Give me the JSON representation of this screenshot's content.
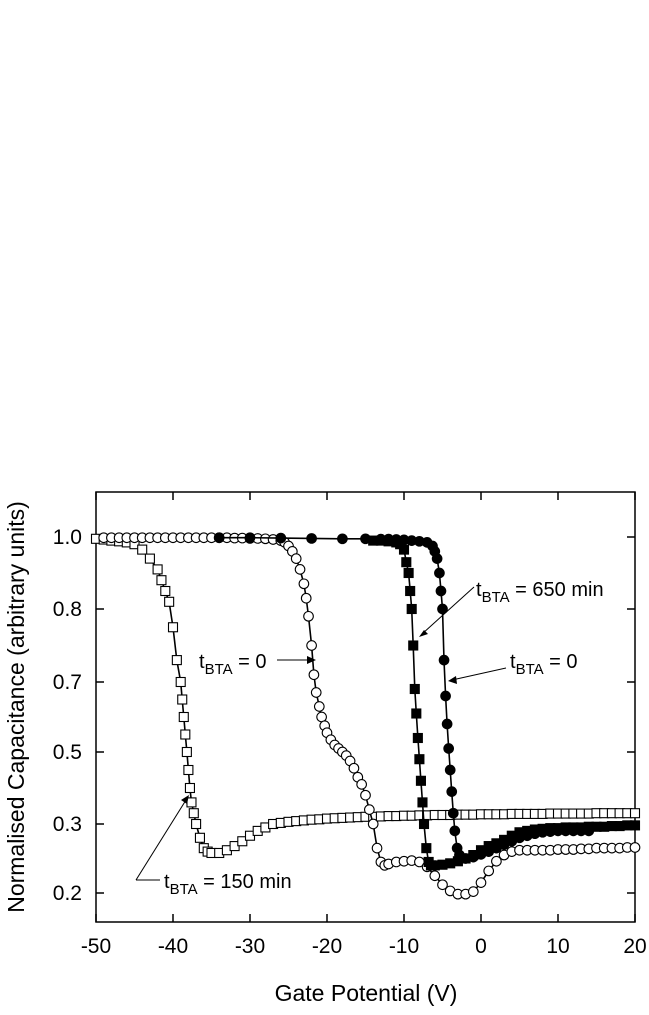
{
  "chart_data": {
    "type": "scatter",
    "title": "",
    "xlabel": "Gate Potential (V)",
    "ylabel": "Normalised Capacitance (arbitrary units)",
    "xlim": [
      -50,
      20
    ],
    "ylim": [
      0.15,
      1.1
    ],
    "x_ticks": [
      -50,
      -40,
      -30,
      -20,
      -10,
      0,
      10,
      20
    ],
    "x_tick_labels": [
      "-50",
      "-40",
      "-30",
      "-20",
      "-10",
      "0",
      "10",
      "20"
    ],
    "y_ticks": [
      1.0,
      0.8,
      0.7,
      0.5,
      0.3,
      0.2
    ],
    "y_tick_labels": [
      "1.0",
      "0.8",
      "0.7",
      "0.5",
      "0.3",
      "0.2"
    ],
    "grid": false,
    "series": [
      {
        "marker": "open-square",
        "points": [
          [
            -50,
            0.995
          ],
          [
            -49,
            0.993
          ],
          [
            -48,
            0.99
          ],
          [
            -47,
            0.988
          ],
          [
            -46,
            0.985
          ],
          [
            -45,
            0.98
          ],
          [
            -44,
            0.965
          ],
          [
            -43,
            0.94
          ],
          [
            -42,
            0.91
          ],
          [
            -41.5,
            0.88
          ],
          [
            -41,
            0.85
          ],
          [
            -40.5,
            0.82
          ],
          [
            -40,
            0.775
          ],
          [
            -39.5,
            0.73
          ],
          [
            -39,
            0.7
          ],
          [
            -38.8,
            0.65
          ],
          [
            -38.6,
            0.6
          ],
          [
            -38.4,
            0.55
          ],
          [
            -38.2,
            0.5
          ],
          [
            -38,
            0.45
          ],
          [
            -37.8,
            0.4
          ],
          [
            -37.6,
            0.36
          ],
          [
            -37.3,
            0.33
          ],
          [
            -37,
            0.3
          ],
          [
            -36.5,
            0.28
          ],
          [
            -36,
            0.265
          ],
          [
            -35.5,
            0.26
          ],
          [
            -35,
            0.258
          ],
          [
            -34,
            0.258
          ],
          [
            -33,
            0.262
          ],
          [
            -32,
            0.268
          ],
          [
            -31,
            0.275
          ],
          [
            -30,
            0.283
          ],
          [
            -29,
            0.29
          ],
          [
            -28,
            0.295
          ],
          [
            -27,
            0.3
          ],
          [
            -26,
            0.303
          ],
          [
            -25,
            0.306
          ],
          [
            -24,
            0.308
          ],
          [
            -23,
            0.31
          ],
          [
            -22,
            0.312
          ],
          [
            -21,
            0.313
          ],
          [
            -20,
            0.315
          ],
          [
            -19,
            0.316
          ],
          [
            -18,
            0.317
          ],
          [
            -17,
            0.318
          ],
          [
            -16,
            0.319
          ],
          [
            -15,
            0.32
          ],
          [
            -14,
            0.32
          ],
          [
            -13,
            0.321
          ],
          [
            -12,
            0.322
          ],
          [
            -11,
            0.322
          ],
          [
            -10,
            0.323
          ],
          [
            -9,
            0.323
          ],
          [
            -8,
            0.324
          ],
          [
            -7,
            0.324
          ],
          [
            -6,
            0.325
          ],
          [
            -5,
            0.325
          ],
          [
            -4,
            0.325
          ],
          [
            -3,
            0.326
          ],
          [
            -2,
            0.326
          ],
          [
            -1,
            0.326
          ],
          [
            0,
            0.327
          ],
          [
            1,
            0.327
          ],
          [
            2,
            0.327
          ],
          [
            3,
            0.327
          ],
          [
            4,
            0.328
          ],
          [
            5,
            0.328
          ],
          [
            6,
            0.328
          ],
          [
            7,
            0.328
          ],
          [
            8,
            0.328
          ],
          [
            9,
            0.329
          ],
          [
            10,
            0.329
          ],
          [
            11,
            0.329
          ],
          [
            12,
            0.329
          ],
          [
            13,
            0.329
          ],
          [
            14,
            0.329
          ],
          [
            15,
            0.33
          ],
          [
            16,
            0.33
          ],
          [
            17,
            0.33
          ],
          [
            18,
            0.33
          ],
          [
            19,
            0.33
          ],
          [
            20,
            0.33
          ]
        ]
      },
      {
        "marker": "open-circle",
        "points": [
          [
            -49,
            0.998
          ],
          [
            -48,
            0.998
          ],
          [
            -47,
            0.998
          ],
          [
            -46,
            0.998
          ],
          [
            -45,
            0.998
          ],
          [
            -44,
            0.998
          ],
          [
            -43,
            0.998
          ],
          [
            -42,
            0.998
          ],
          [
            -41,
            0.998
          ],
          [
            -40,
            0.998
          ],
          [
            -39,
            0.998
          ],
          [
            -38,
            0.998
          ],
          [
            -37,
            0.998
          ],
          [
            -36,
            0.998
          ],
          [
            -35,
            0.998
          ],
          [
            -34,
            0.998
          ],
          [
            -33,
            0.998
          ],
          [
            -32,
            0.997
          ],
          [
            -31,
            0.997
          ],
          [
            -30,
            0.996
          ],
          [
            -29,
            0.996
          ],
          [
            -28,
            0.995
          ],
          [
            -27,
            0.993
          ],
          [
            -26,
            0.99
          ],
          [
            -25.5,
            0.985
          ],
          [
            -25,
            0.975
          ],
          [
            -24.5,
            0.96
          ],
          [
            -24,
            0.94
          ],
          [
            -23.5,
            0.91
          ],
          [
            -23,
            0.87
          ],
          [
            -22.7,
            0.83
          ],
          [
            -22.4,
            0.79
          ],
          [
            -22,
            0.75
          ],
          [
            -21.7,
            0.71
          ],
          [
            -21.4,
            0.67
          ],
          [
            -21,
            0.63
          ],
          [
            -20.7,
            0.6
          ],
          [
            -20.3,
            0.575
          ],
          [
            -20,
            0.555
          ],
          [
            -19.5,
            0.535
          ],
          [
            -19,
            0.52
          ],
          [
            -18.5,
            0.51
          ],
          [
            -18,
            0.5
          ],
          [
            -17.5,
            0.49
          ],
          [
            -17,
            0.475
          ],
          [
            -16.5,
            0.455
          ],
          [
            -16,
            0.43
          ],
          [
            -15.5,
            0.41
          ],
          [
            -15,
            0.38
          ],
          [
            -14.5,
            0.34
          ],
          [
            -14,
            0.3
          ],
          [
            -13.5,
            0.265
          ],
          [
            -13,
            0.245
          ],
          [
            -12.5,
            0.24
          ],
          [
            -12,
            0.242
          ],
          [
            -11,
            0.245
          ],
          [
            -10,
            0.246
          ],
          [
            -9,
            0.247
          ],
          [
            -8,
            0.245
          ],
          [
            -7,
            0.238
          ],
          [
            -6,
            0.225
          ],
          [
            -5,
            0.212
          ],
          [
            -4,
            0.203
          ],
          [
            -3,
            0.198
          ],
          [
            -2,
            0.198
          ],
          [
            -1,
            0.202
          ],
          [
            0,
            0.215
          ],
          [
            1,
            0.232
          ],
          [
            2,
            0.246
          ],
          [
            3,
            0.255
          ],
          [
            4,
            0.26
          ],
          [
            5,
            0.262
          ],
          [
            6,
            0.262
          ],
          [
            7,
            0.262
          ],
          [
            8,
            0.262
          ],
          [
            9,
            0.262
          ],
          [
            10,
            0.263
          ],
          [
            11,
            0.263
          ],
          [
            12,
            0.263
          ],
          [
            13,
            0.264
          ],
          [
            14,
            0.264
          ],
          [
            15,
            0.265
          ],
          [
            16,
            0.265
          ],
          [
            17,
            0.265
          ],
          [
            18,
            0.265
          ],
          [
            19,
            0.266
          ],
          [
            20,
            0.266
          ]
        ]
      },
      {
        "marker": "filled-square",
        "points": [
          [
            -14,
            0.99
          ],
          [
            -13,
            0.99
          ],
          [
            -12,
            0.988
          ],
          [
            -11,
            0.985
          ],
          [
            -10.5,
            0.98
          ],
          [
            -10,
            0.965
          ],
          [
            -9.7,
            0.93
          ],
          [
            -9.4,
            0.9
          ],
          [
            -9.2,
            0.85
          ],
          [
            -9,
            0.8
          ],
          [
            -8.8,
            0.75
          ],
          [
            -8.6,
            0.68
          ],
          [
            -8.4,
            0.61
          ],
          [
            -8.2,
            0.54
          ],
          [
            -8,
            0.48
          ],
          [
            -7.8,
            0.42
          ],
          [
            -7.6,
            0.36
          ],
          [
            -7.4,
            0.3
          ],
          [
            -7.1,
            0.265
          ],
          [
            -6.8,
            0.245
          ],
          [
            -6.5,
            0.24
          ],
          [
            -6,
            0.24
          ],
          [
            -5,
            0.241
          ],
          [
            -4,
            0.243
          ],
          [
            -3,
            0.246
          ],
          [
            -2,
            0.25
          ],
          [
            -1,
            0.255
          ],
          [
            0,
            0.262
          ],
          [
            1,
            0.268
          ],
          [
            2,
            0.272
          ],
          [
            3,
            0.277
          ],
          [
            4,
            0.283
          ],
          [
            5,
            0.288
          ],
          [
            6,
            0.29
          ],
          [
            7,
            0.292
          ],
          [
            8,
            0.293
          ],
          [
            9,
            0.294
          ],
          [
            10,
            0.294
          ],
          [
            11,
            0.295
          ],
          [
            12,
            0.295
          ],
          [
            13,
            0.295
          ],
          [
            14,
            0.296
          ],
          [
            15,
            0.296
          ],
          [
            16,
            0.296
          ],
          [
            17,
            0.297
          ],
          [
            18,
            0.297
          ],
          [
            19,
            0.298
          ],
          [
            20,
            0.298
          ]
        ]
      },
      {
        "marker": "filled-circle",
        "points": [
          [
            -34,
            0.998
          ],
          [
            -30,
            0.998
          ],
          [
            -26,
            0.997
          ],
          [
            -22,
            0.996
          ],
          [
            -18,
            0.995
          ],
          [
            -15,
            0.995
          ],
          [
            -13,
            0.994
          ],
          [
            -12,
            0.994
          ],
          [
            -11,
            0.993
          ],
          [
            -10,
            0.992
          ],
          [
            -9,
            0.99
          ],
          [
            -8,
            0.988
          ],
          [
            -7,
            0.985
          ],
          [
            -6.3,
            0.975
          ],
          [
            -6,
            0.96
          ],
          [
            -5.7,
            0.94
          ],
          [
            -5.4,
            0.9
          ],
          [
            -5.2,
            0.85
          ],
          [
            -5,
            0.8
          ],
          [
            -4.8,
            0.73
          ],
          [
            -4.6,
            0.66
          ],
          [
            -4.4,
            0.58
          ],
          [
            -4.2,
            0.51
          ],
          [
            -4,
            0.45
          ],
          [
            -3.8,
            0.39
          ],
          [
            -3.6,
            0.33
          ],
          [
            -3.4,
            0.29
          ],
          [
            -3.1,
            0.265
          ],
          [
            -2.8,
            0.255
          ],
          [
            -2,
            0.25
          ],
          [
            -1,
            0.252
          ],
          [
            0,
            0.256
          ],
          [
            1,
            0.26
          ],
          [
            2,
            0.265
          ],
          [
            3,
            0.27
          ],
          [
            4,
            0.275
          ],
          [
            5,
            0.28
          ],
          [
            6,
            0.283
          ],
          [
            7,
            0.286
          ],
          [
            8,
            0.288
          ],
          [
            9,
            0.289
          ],
          [
            10,
            0.29
          ],
          [
            11,
            0.29
          ],
          [
            12,
            0.29
          ],
          [
            13,
            0.29
          ],
          [
            14,
            0.29
          ]
        ]
      }
    ],
    "annotations": [
      {
        "base": "t",
        "sub": "BTA",
        "text": " = 650 min"
      },
      {
        "base": "t",
        "sub": "BTA",
        "text": " = 0"
      },
      {
        "base": "t",
        "sub": "BTA",
        "text": " = 0"
      },
      {
        "base": "t",
        "sub": "BTA",
        "text": " = 150 min"
      }
    ]
  }
}
